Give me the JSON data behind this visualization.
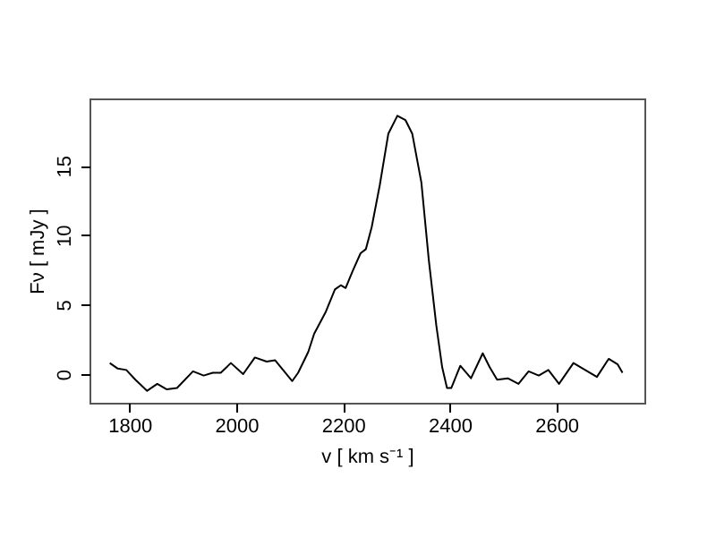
{
  "chart_data": {
    "type": "line",
    "xlabel": "v [ km s⁻¹ ]",
    "ylabel": "Fν [ mJy ]",
    "x": [
      1763,
      1778,
      1794,
      1811,
      1833,
      1852,
      1870,
      1889,
      1919,
      1939,
      1956,
      1971,
      1990,
      2013,
      2035,
      2057,
      2073,
      2105,
      2116,
      2135,
      2146,
      2168,
      2185,
      2196,
      2205,
      2218,
      2233,
      2243,
      2254,
      2269,
      2285,
      2302,
      2317,
      2330,
      2347,
      2361,
      2375,
      2386,
      2395,
      2403,
      2420,
      2440,
      2462,
      2475,
      2489,
      2509,
      2529,
      2548,
      2567,
      2585,
      2605,
      2632,
      2654,
      2676,
      2698,
      2715,
      2724
    ],
    "series": [
      {
        "color": "#000000",
        "values": [
          0.8,
          0.4,
          0.3,
          -0.4,
          -1.2,
          -0.7,
          -1.1,
          -1.0,
          0.2,
          -0.1,
          0.1,
          0.1,
          0.8,
          0.0,
          1.2,
          0.9,
          1.0,
          -0.5,
          0.1,
          1.6,
          2.9,
          4.5,
          6.1,
          6.4,
          6.2,
          7.4,
          8.7,
          9.0,
          10.6,
          13.6,
          17.3,
          18.6,
          18.3,
          17.3,
          13.8,
          8.2,
          3.5,
          0.5,
          -1.0,
          -1.0,
          0.6,
          -0.3,
          1.5,
          0.5,
          -0.4,
          -0.3,
          -0.7,
          0.2,
          -0.1,
          0.3,
          -0.7,
          0.8,
          0.3,
          -0.2,
          1.1,
          0.7,
          0.1
        ]
      }
    ],
    "xlim": [
      1725,
      2765
    ],
    "ylim": [
      -2.06,
      19.85
    ],
    "xticks": [
      1800,
      2000,
      2200,
      2400,
      2600
    ],
    "yticks": [
      0,
      5,
      10,
      15
    ],
    "grid": false,
    "marker": "none",
    "line_style": "solid"
  }
}
